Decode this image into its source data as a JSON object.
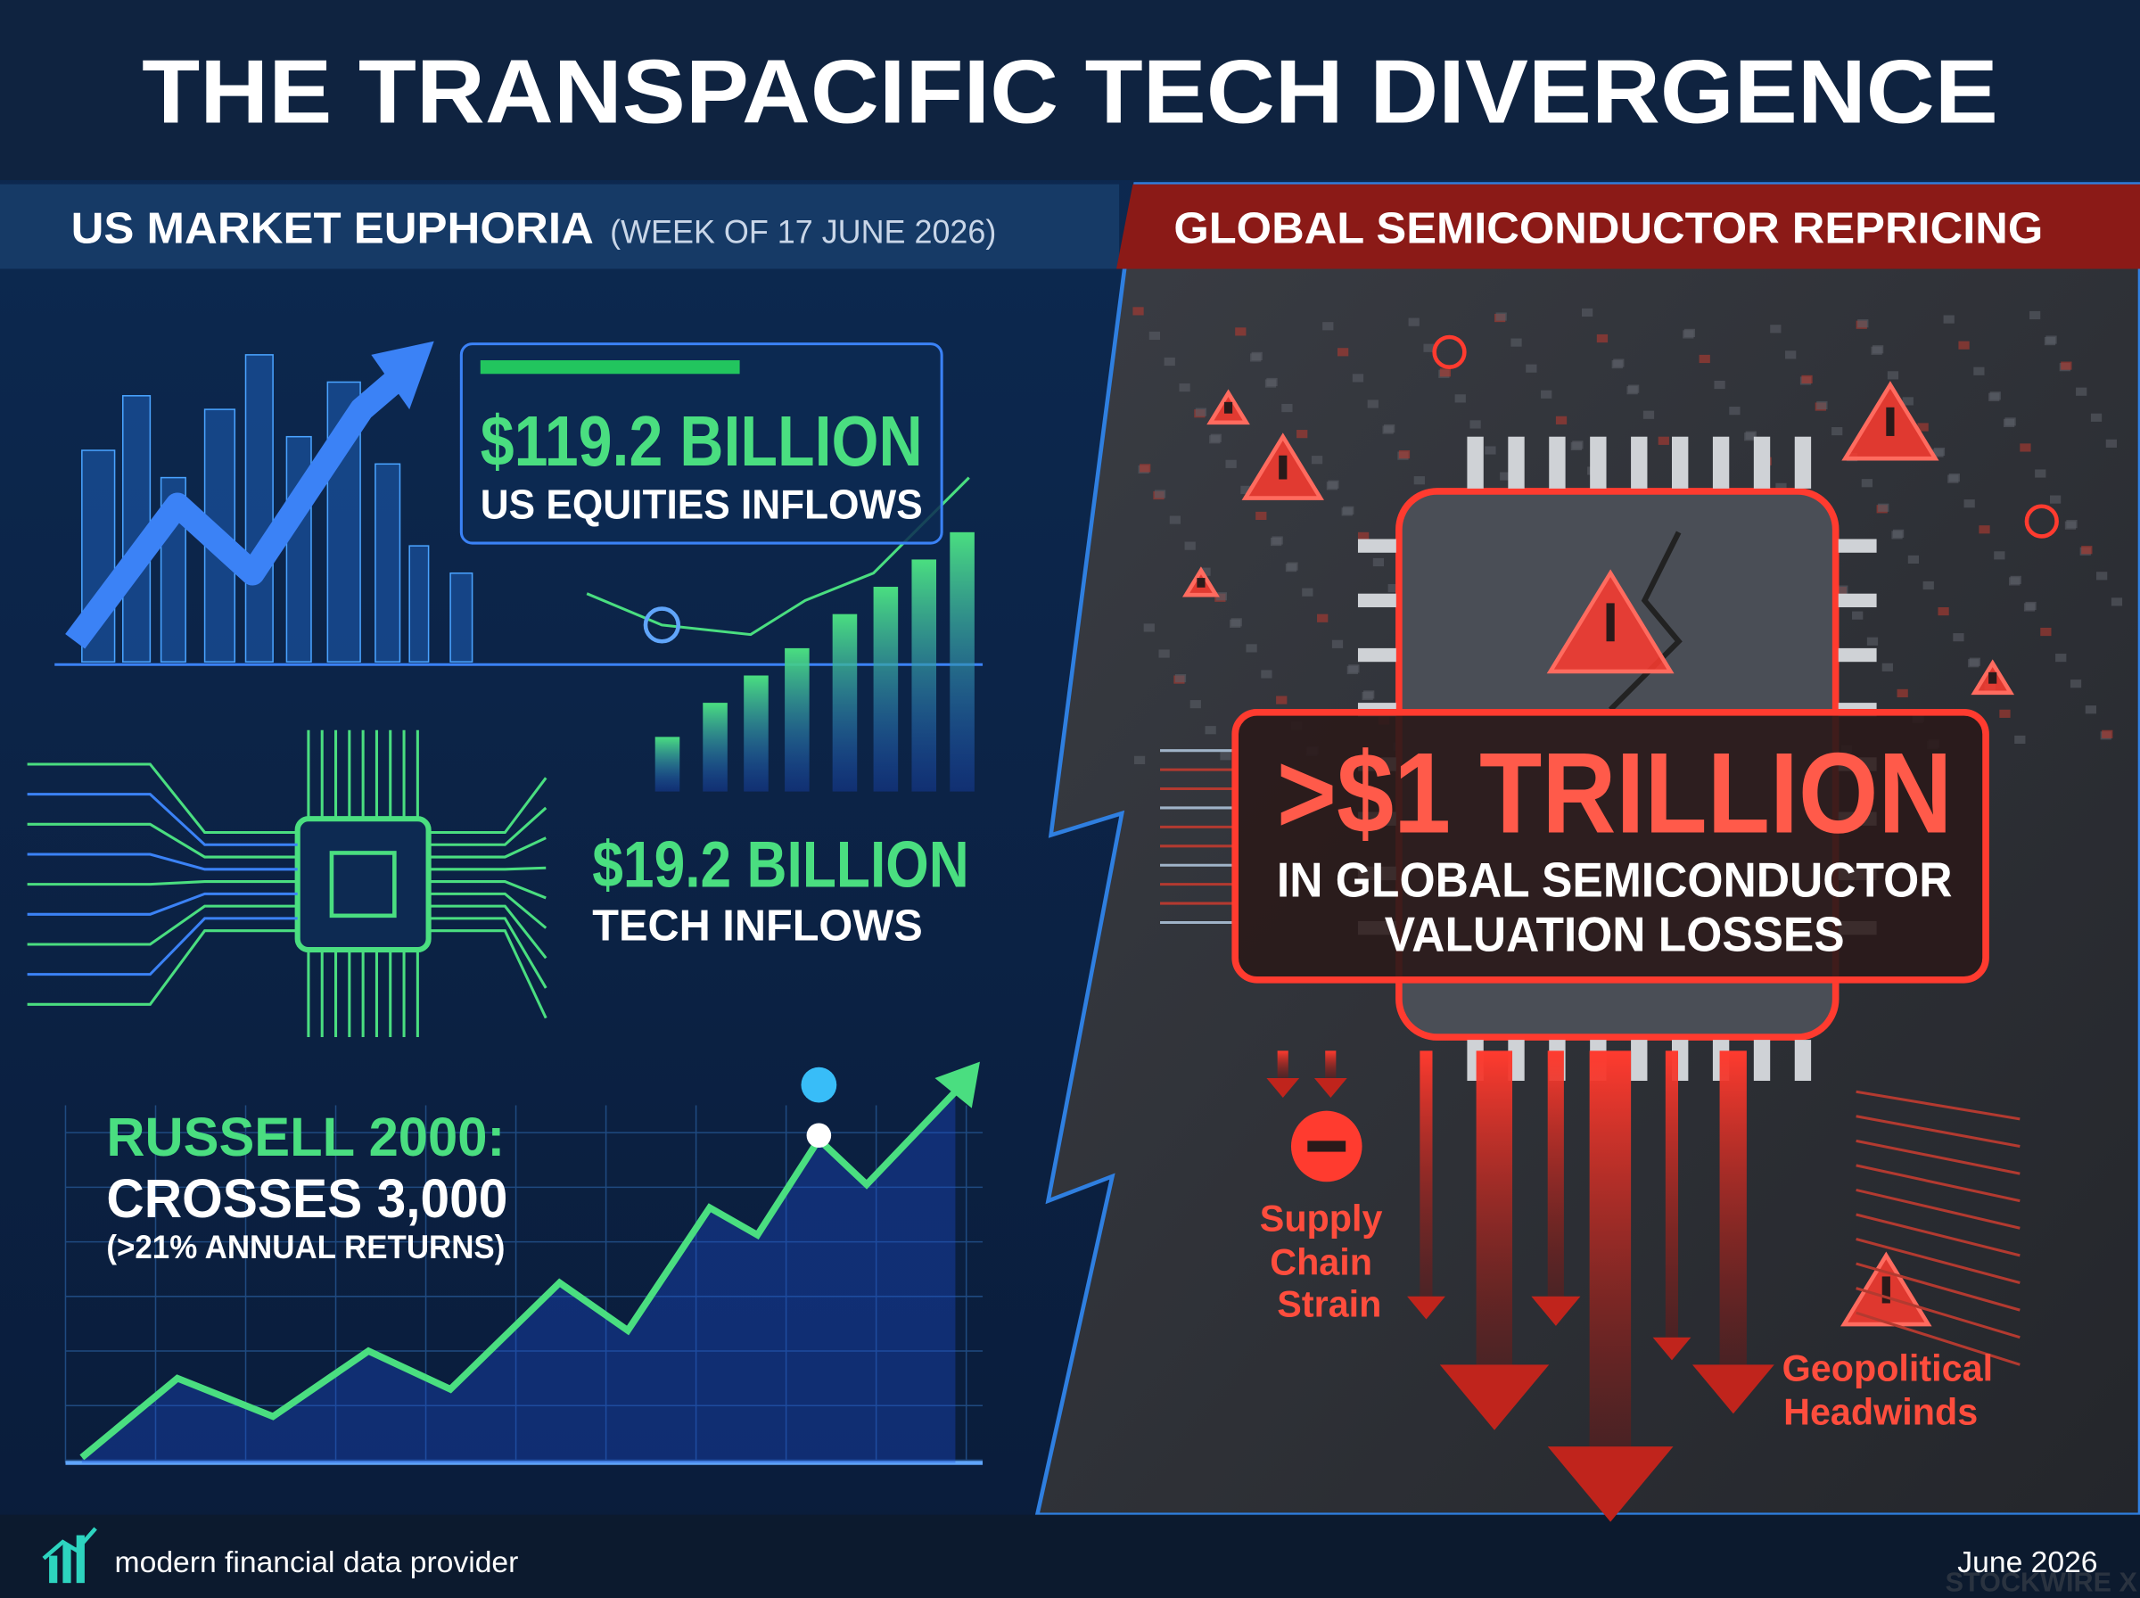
{
  "header": {
    "title": "THE TRANSPACIFIC TECH DIVERGENCE"
  },
  "left": {
    "heading": "US MARKET EUPHORIA",
    "subheading": "(WEEK OF 17 JUNE 2026)",
    "stats": [
      {
        "value": "$119.2 BILLION",
        "label": "US EQUITIES INFLOWS"
      },
      {
        "value": "$19.2 BILLION",
        "label": "TECH INFLOWS"
      }
    ],
    "russell": {
      "title": "RUSSELL 2000:",
      "line": "CROSSES 3,000",
      "note": "(>21% ANNUAL RETURNS)"
    }
  },
  "right": {
    "heading": "GLOBAL SEMICONDUCTOR REPRICING",
    "stat": {
      "value": ">$1 TRILLION",
      "label_lines": [
        "IN GLOBAL SEMICONDUCTOR",
        "VALUATION LOSSES"
      ]
    },
    "risks": [
      {
        "lines": [
          "Supply",
          "Chain",
          "Strain"
        ]
      },
      {
        "lines": [
          "Geopolitical",
          "Headwinds"
        ]
      }
    ]
  },
  "footer": {
    "tagline": "modern financial data provider",
    "date": "June 2026",
    "brand": "STOCKWIRE X"
  }
}
